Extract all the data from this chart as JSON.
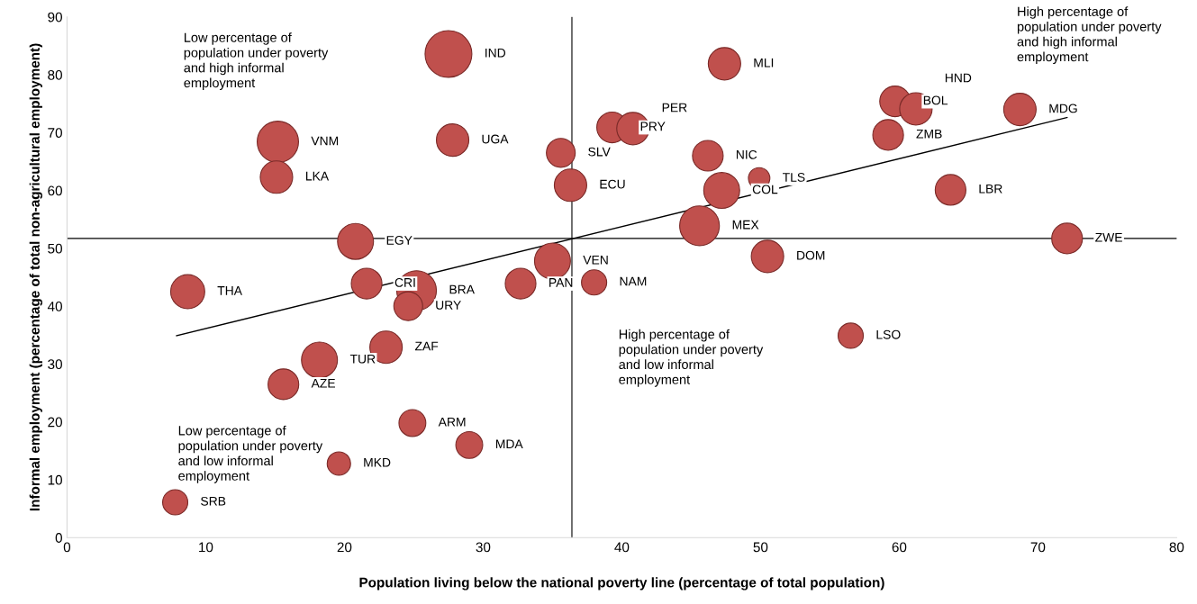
{
  "chart_data": {
    "type": "bubble",
    "xlabel": "Population living below the national poverty line (percentage of total population)",
    "ylabel": "Informal employment (percentage of total non-agricultural employment)",
    "xlim": [
      0,
      80
    ],
    "xticks": [
      0,
      10,
      20,
      30,
      40,
      50,
      60,
      70,
      80
    ],
    "ylim": [
      0,
      90
    ],
    "yticks": [
      0,
      10,
      20,
      30,
      40,
      50,
      60,
      70,
      80,
      90
    ],
    "grid": false,
    "legend": false,
    "annotations": [
      "Low percentage of\npopulation under poverty\nand high informal\nemployment",
      "High percentage of\npopulation under poverty\nand high informal\nemployment",
      "High percentage of\npopulation under poverty\nand low informal\nemployment",
      "Low percentage of\npopulation under poverty\nand low informal\nemployment"
    ],
    "ref_lines": [
      {
        "axis": "x",
        "value": 36.4,
        "color": "#000000"
      },
      {
        "axis": "y",
        "value": 51.7,
        "color": "#000000"
      }
    ],
    "series": [
      {
        "color": "#c0504d",
        "value_labels": [
          "IND",
          "MLI",
          "VNM",
          "LKA",
          "UGA",
          "SLV",
          "ECU",
          "PRY",
          "PER",
          "NIC",
          "TLS",
          "COL",
          "MEX",
          "BOL",
          "HND",
          "MDG",
          "ZMB",
          "LBR",
          "ZWE",
          "DOM",
          "LSO",
          "EGY",
          "THA",
          "CRI",
          "BRA",
          "URY",
          "PAN",
          "VEN",
          "NAM",
          "ZAF",
          "TUR",
          "AZE",
          "ARM",
          "MDA",
          "MKD",
          "SRB"
        ],
        "x": [
          27.5,
          47.4,
          15.2,
          15.1,
          27.8,
          35.6,
          36.3,
          39.3,
          40.8,
          46.2,
          49.9,
          47.2,
          45.6,
          59.7,
          61.2,
          68.7,
          59.2,
          63.7,
          72.1,
          50.5,
          56.5,
          20.8,
          8.7,
          21.6,
          25.2,
          24.6,
          32.7,
          35.0,
          38.0,
          23.0,
          18.2,
          15.6,
          24.9,
          29.0,
          19.6,
          7.8
        ],
        "values": [
          83.6,
          81.9,
          68.4,
          62.3,
          68.7,
          66.5,
          60.9,
          70.9,
          70.7,
          66.0,
          62.1,
          60.0,
          53.9,
          75.4,
          74.1,
          74.0,
          69.6,
          60.1,
          51.7,
          48.6,
          34.9,
          51.2,
          42.5,
          43.9,
          42.7,
          40.0,
          43.9,
          47.8,
          44.1,
          32.9,
          30.7,
          26.5,
          19.8,
          16.0,
          12.8,
          6.1
        ],
        "sizes": [
          1,
          0.48,
          0.78,
          0.48,
          0.48,
          0.38,
          0.48,
          0.43,
          0.48,
          0.43,
          0.21,
          0.59,
          0.72,
          0.43,
          0.48,
          0.48,
          0.43,
          0.43,
          0.43,
          0.48,
          0.29,
          0.59,
          0.53,
          0.43,
          0.72,
          0.38,
          0.43,
          0.59,
          0.29,
          0.48,
          0.59,
          0.43,
          0.33,
          0.33,
          0.25,
          0.29
        ]
      },
      {
        "type": "line",
        "color": "#000000",
        "x": [
          7.9,
          72.1
        ],
        "values": [
          34.9,
          72.6
        ]
      }
    ]
  }
}
